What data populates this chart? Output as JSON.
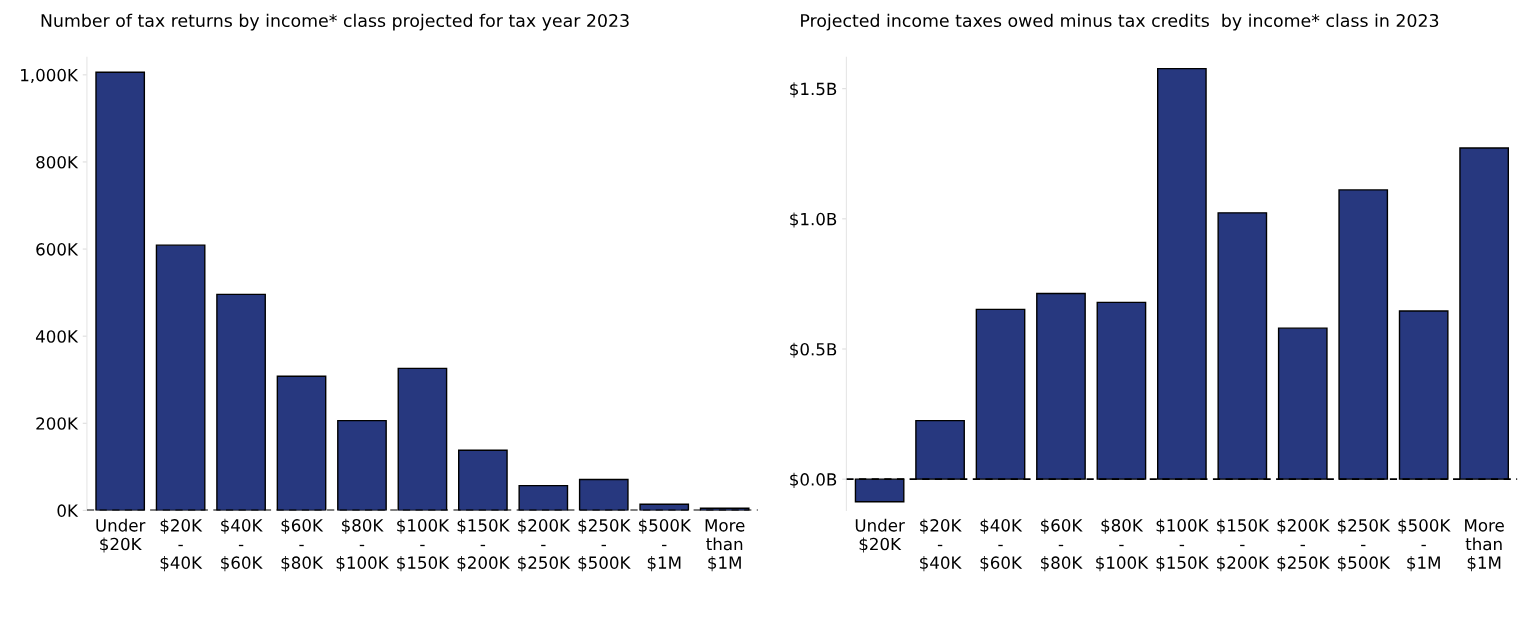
{
  "chart_data": [
    {
      "type": "bar",
      "title": "Number of tax returns by income* class projected for tax year 2023",
      "categories": [
        "Under\n$20K",
        "$20K\n-\n$40K",
        "$40K\n-\n$60K",
        "$60K\n-\n$80K",
        "$80K\n-\n$100K",
        "$100K\n-\n$150K",
        "$150K\n-\n$200K",
        "$200K\n-\n$250K",
        "$250K\n-\n$500K",
        "$500K\n-\n$1M",
        "More\nthan\n$1M"
      ],
      "values": [
        1006,
        609,
        496,
        308,
        206,
        326,
        138,
        57,
        71,
        14,
        5
      ],
      "color": "#27387f",
      "ylim": [
        0,
        1040
      ],
      "yticks": [
        {
          "value": 0,
          "label": "0K"
        },
        {
          "value": 200,
          "label": "200K"
        },
        {
          "value": 400,
          "label": "400K"
        },
        {
          "value": 600,
          "label": "600K"
        },
        {
          "value": 800,
          "label": "800K"
        },
        {
          "value": 1000,
          "label": "1,000K"
        }
      ],
      "ref_lines": [
        {
          "axis": "y",
          "value": 0,
          "color": "#000000",
          "line_style": "dashed"
        }
      ]
    },
    {
      "type": "bar",
      "title": "Projected income taxes owed minus tax credits  by income* class in 2023",
      "categories": [
        "Under\n$20K",
        "$20K\n-\n$40K",
        "$40K\n-\n$60K",
        "$60K\n-\n$80K",
        "$80K\n-\n$100K",
        "$100K\n-\n$150K",
        "$150K\n-\n$200K",
        "$200K\n-\n$250K",
        "$250K\n-\n$500K",
        "$500K\n-\n$1M",
        "More\nthan\n$1M"
      ],
      "values": [
        -0.087,
        0.225,
        0.652,
        0.713,
        0.679,
        1.577,
        1.023,
        0.58,
        1.111,
        0.646,
        1.272
      ],
      "color": "#27387f",
      "ylim": [
        -0.12,
        1.62
      ],
      "yticks": [
        {
          "value": 0,
          "label": "$0.0B"
        },
        {
          "value": 0.5,
          "label": "$0.5B"
        },
        {
          "value": 1.0,
          "label": "$1.0B"
        },
        {
          "value": 1.5,
          "label": "$1.5B"
        }
      ],
      "ref_lines": [
        {
          "axis": "y",
          "value": 0,
          "color": "#000000",
          "line_style": "dashed"
        }
      ]
    }
  ]
}
